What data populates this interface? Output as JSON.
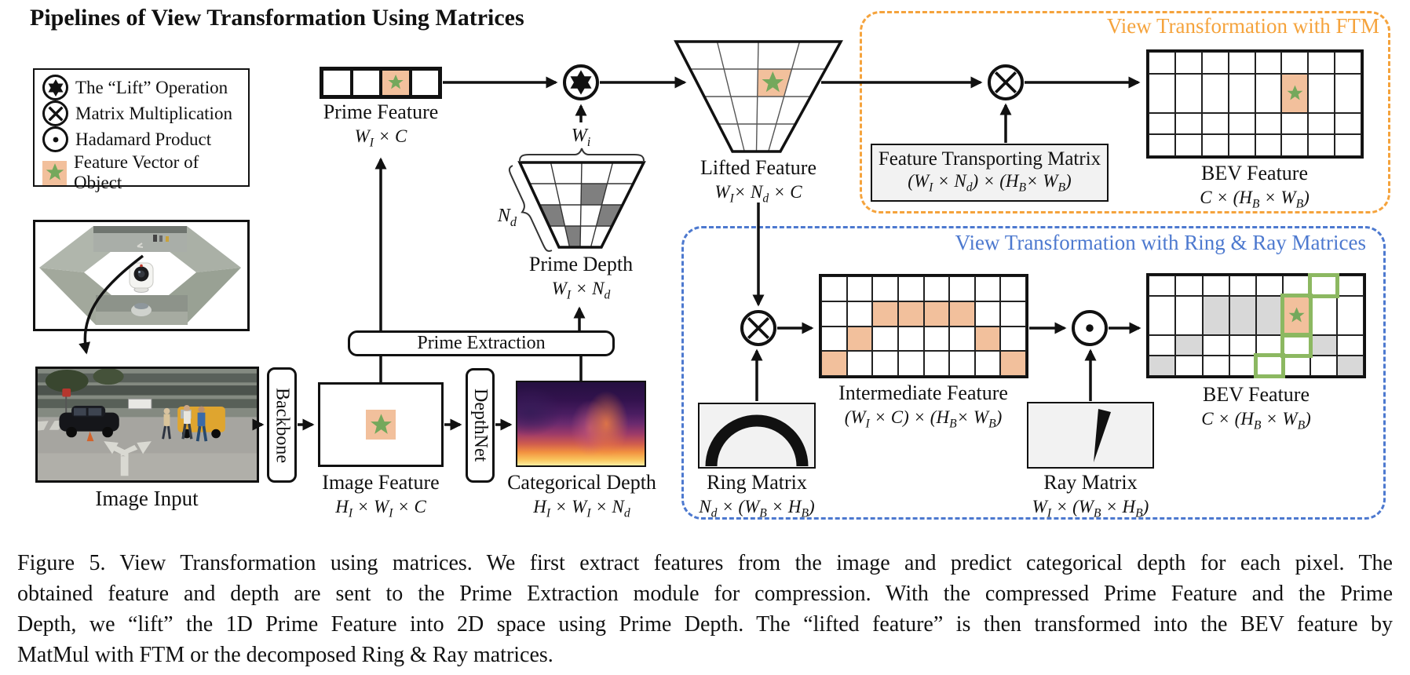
{
  "title": "Pipelines of View Transformation Using Matrices",
  "legend": {
    "items": [
      {
        "label": "The “Lift” Operation"
      },
      {
        "label": "Matrix Multiplication"
      },
      {
        "label": "Hadamard Product"
      },
      {
        "label": "Feature Vector of Object"
      }
    ]
  },
  "pipeline": {
    "image_input": {
      "label": "Image Input"
    },
    "backbone": {
      "label": "Backbone"
    },
    "image_feature": {
      "label": "Image Feature",
      "dims": "H<sub>I</sub> × W<sub>I</sub> × C"
    },
    "depthnet": {
      "label": "DepthNet"
    },
    "categorical_depth": {
      "label": "Categorical Depth",
      "dims": "H<sub>I</sub> × W<sub>I</sub> × N<sub>d</sub>"
    },
    "prime_extraction": {
      "label": "Prime Extraction"
    },
    "prime_feature": {
      "label": "Prime Feature",
      "dims": "W<sub>I</sub> × C",
      "grid": {
        "rows": 1,
        "cols": 4,
        "cells": [
          {
            "r": 1,
            "c": 3,
            "type": "star"
          }
        ]
      }
    },
    "prime_depth": {
      "label": "Prime Depth",
      "dims": "W<sub>I</sub> × N<sub>d</sub>",
      "top_brace_label": "W<sub>i</sub>",
      "left_brace_label": "N<sub>d</sub>",
      "gray_cells": [
        {
          "r": 2,
          "c": 3,
          "type": "gray"
        },
        {
          "r": 3,
          "c": 1,
          "type": "gray"
        },
        {
          "r": 3,
          "c": 4,
          "type": "gray"
        },
        {
          "r": 4,
          "c": 2,
          "type": "gray"
        }
      ]
    },
    "lifted_feature": {
      "label": "Lifted Feature",
      "dims": "W<sub>I</sub>× N<sub>d</sub> × C",
      "cells": [
        {
          "r": 2,
          "c": 3,
          "type": "star"
        }
      ]
    }
  },
  "ftm_branch": {
    "title": "View Transformation with FTM",
    "matrix_box": {
      "label": "Feature Transporting Matrix",
      "dims": "(W<sub>I</sub> × N<sub>d</sub>) × (H<sub>B</sub>× W<sub>B</sub>)"
    },
    "bev": {
      "label": "BEV Feature",
      "dims": "C × (H<sub>B</sub> × W<sub>B</sub>)",
      "grid": {
        "rows": 4,
        "cols": 8,
        "cells": [
          {
            "r": 2,
            "c": 6,
            "type": "star"
          }
        ]
      }
    }
  },
  "ring_ray_branch": {
    "title": "View Transformation with Ring & Ray Matrices",
    "intermediate": {
      "label": "Intermediate Feature",
      "dims": "(W<sub>I</sub> × C) × (H<sub>B</sub>× W<sub>B</sub>)",
      "grid": {
        "rows": 4,
        "cols": 8,
        "cells": [
          {
            "r": 2,
            "c": 3,
            "type": "orange"
          },
          {
            "r": 2,
            "c": 4,
            "type": "orange"
          },
          {
            "r": 2,
            "c": 5,
            "type": "orange"
          },
          {
            "r": 2,
            "c": 6,
            "type": "orange"
          },
          {
            "r": 3,
            "c": 2,
            "type": "orange"
          },
          {
            "r": 3,
            "c": 7,
            "type": "orange"
          },
          {
            "r": 4,
            "c": 1,
            "type": "orange"
          },
          {
            "r": 4,
            "c": 8,
            "type": "orange"
          }
        ]
      }
    },
    "ring_matrix": {
      "label": "Ring Matrix",
      "dims": "N<sub>d</sub> × (W<sub>B</sub> × H<sub>B</sub>)"
    },
    "ray_matrix": {
      "label": "Ray Matrix",
      "dims": "W<sub>I</sub> × (W<sub>B</sub> × H<sub>B</sub>)"
    },
    "bev": {
      "label": "BEV Feature",
      "dims": "C × (H<sub>B</sub> × W<sub>B</sub>)",
      "grid": {
        "rows": 4,
        "cols": 8,
        "cells": [
          {
            "r": 1,
            "c": 7,
            "type": "green"
          },
          {
            "r": 2,
            "c": 3,
            "type": "gray"
          },
          {
            "r": 2,
            "c": 4,
            "type": "gray"
          },
          {
            "r": 2,
            "c": 5,
            "type": "gray"
          },
          {
            "r": 2,
            "c": 6,
            "type": "star green"
          },
          {
            "r": 3,
            "c": 2,
            "type": "gray"
          },
          {
            "r": 3,
            "c": 6,
            "type": "green"
          },
          {
            "r": 3,
            "c": 7,
            "type": "gray"
          },
          {
            "r": 4,
            "c": 1,
            "type": "gray"
          },
          {
            "r": 4,
            "c": 5,
            "type": "green"
          },
          {
            "r": 4,
            "c": 8,
            "type": "gray"
          }
        ]
      }
    }
  },
  "caption": {
    "lines": [
      "Figure 5. View Transformation using matrices. We first extract features from the image and predict categorical depth for each pixel. The",
      "obtained feature and depth are sent to the Prime Extraction module for compression. With the compressed Prime Feature and the Prime",
      "Depth, we “lift” the 1D Prime Feature into 2D space using Prime Depth. The “lifted feature” is then transformed into the BEV feature by",
      "MatMul with FTM or the decomposed Ring & Ray matrices."
    ]
  },
  "colors": {
    "accent_orange": "#F5A33C",
    "accent_blue": "#4D79CF",
    "cell_orange": "#F2C09C",
    "star_green": "#74A85C",
    "cell_gray": "#D8D8D8",
    "depth_cell_gray": "#7F7F7F",
    "outline_green": "#8CB861"
  }
}
